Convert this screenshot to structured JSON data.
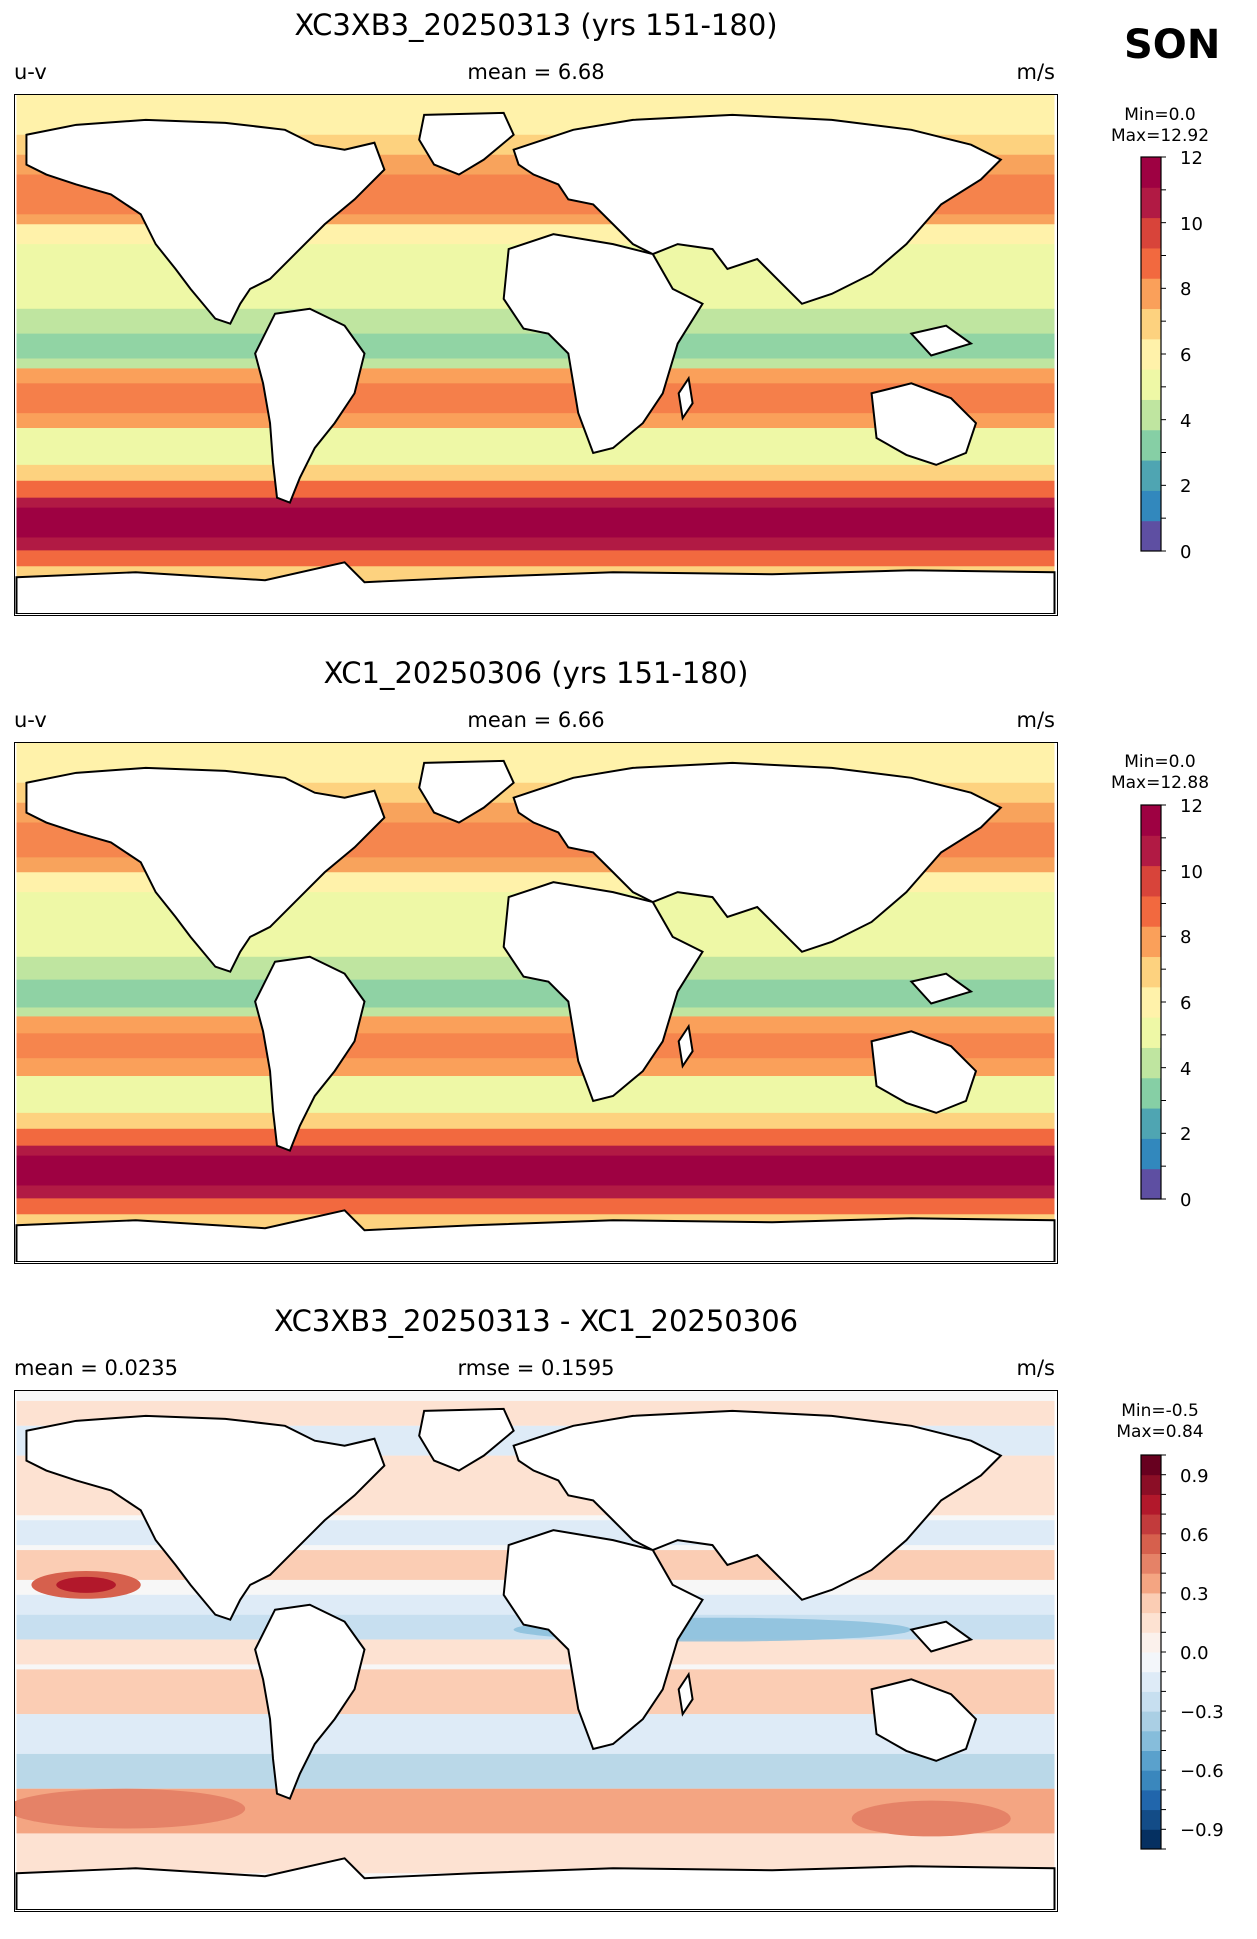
{
  "season": "SON",
  "panels": [
    {
      "id": "test",
      "title": "XC3XB3_20250313 (yrs 151-180)",
      "left_label": "u-v",
      "center_label": "mean = 6.68",
      "right_label": "m/s",
      "colorbar": {
        "min_text": "Min=0.0",
        "max_text": "Max=12.92",
        "ticks": [
          "0",
          "2",
          "4",
          "6",
          "8",
          "10",
          "12"
        ],
        "levels": [
          0,
          1,
          2,
          3,
          4,
          5,
          6,
          7,
          8,
          9,
          10,
          11,
          12
        ],
        "colors": [
          "#5e4fa2",
          "#3288bd",
          "#4fa5b2",
          "#86cfa5",
          "#bfe5a0",
          "#eef8a6",
          "#fff2aa",
          "#fdd27f",
          "#faa05a",
          "#f2693f",
          "#d8443a",
          "#b11a44",
          "#9e0142"
        ]
      }
    },
    {
      "id": "reference",
      "title": "XC1_20250306 (yrs 151-180)",
      "left_label": "u-v",
      "center_label": "mean = 6.66",
      "right_label": "m/s",
      "colorbar": {
        "min_text": "Min=0.0",
        "max_text": "Max=12.88",
        "ticks": [
          "0",
          "2",
          "4",
          "6",
          "8",
          "10",
          "12"
        ],
        "levels": [
          0,
          1,
          2,
          3,
          4,
          5,
          6,
          7,
          8,
          9,
          10,
          11,
          12
        ],
        "colors": [
          "#5e4fa2",
          "#3288bd",
          "#4fa5b2",
          "#86cfa5",
          "#bfe5a0",
          "#eef8a6",
          "#fff2aa",
          "#fdd27f",
          "#faa05a",
          "#f2693f",
          "#d8443a",
          "#b11a44",
          "#9e0142"
        ]
      }
    },
    {
      "id": "difference",
      "title": "XC3XB3_20250313 - XC1_20250306",
      "left_label": "mean = 0.0235",
      "center_label": "rmse = 0.1595",
      "right_label": "m/s",
      "colorbar": {
        "min_text": "Min=-0.5",
        "max_text": "Max=0.84",
        "ticks": [
          "−0.9",
          "−0.6",
          "−0.3",
          "0.0",
          "0.3",
          "0.6",
          "0.9"
        ],
        "levels": [
          -1.0,
          -0.9,
          -0.8,
          -0.7,
          -0.6,
          -0.5,
          -0.4,
          -0.3,
          -0.2,
          -0.1,
          0.0,
          0.1,
          0.2,
          0.3,
          0.4,
          0.5,
          0.6,
          0.7,
          0.8,
          0.9,
          1.0
        ],
        "colors": [
          "#053061",
          "#134c87",
          "#2166ac",
          "#3a87bd",
          "#5aa1cc",
          "#86bddb",
          "#aacfe4",
          "#c7dff0",
          "#deebf7",
          "#f3f6fa",
          "#fbf1ec",
          "#fde2d2",
          "#fbcdb4",
          "#f4a582",
          "#e58267",
          "#d6604d",
          "#c23b3c",
          "#b2182b",
          "#8b0e26",
          "#67001f"
        ]
      }
    }
  ]
}
